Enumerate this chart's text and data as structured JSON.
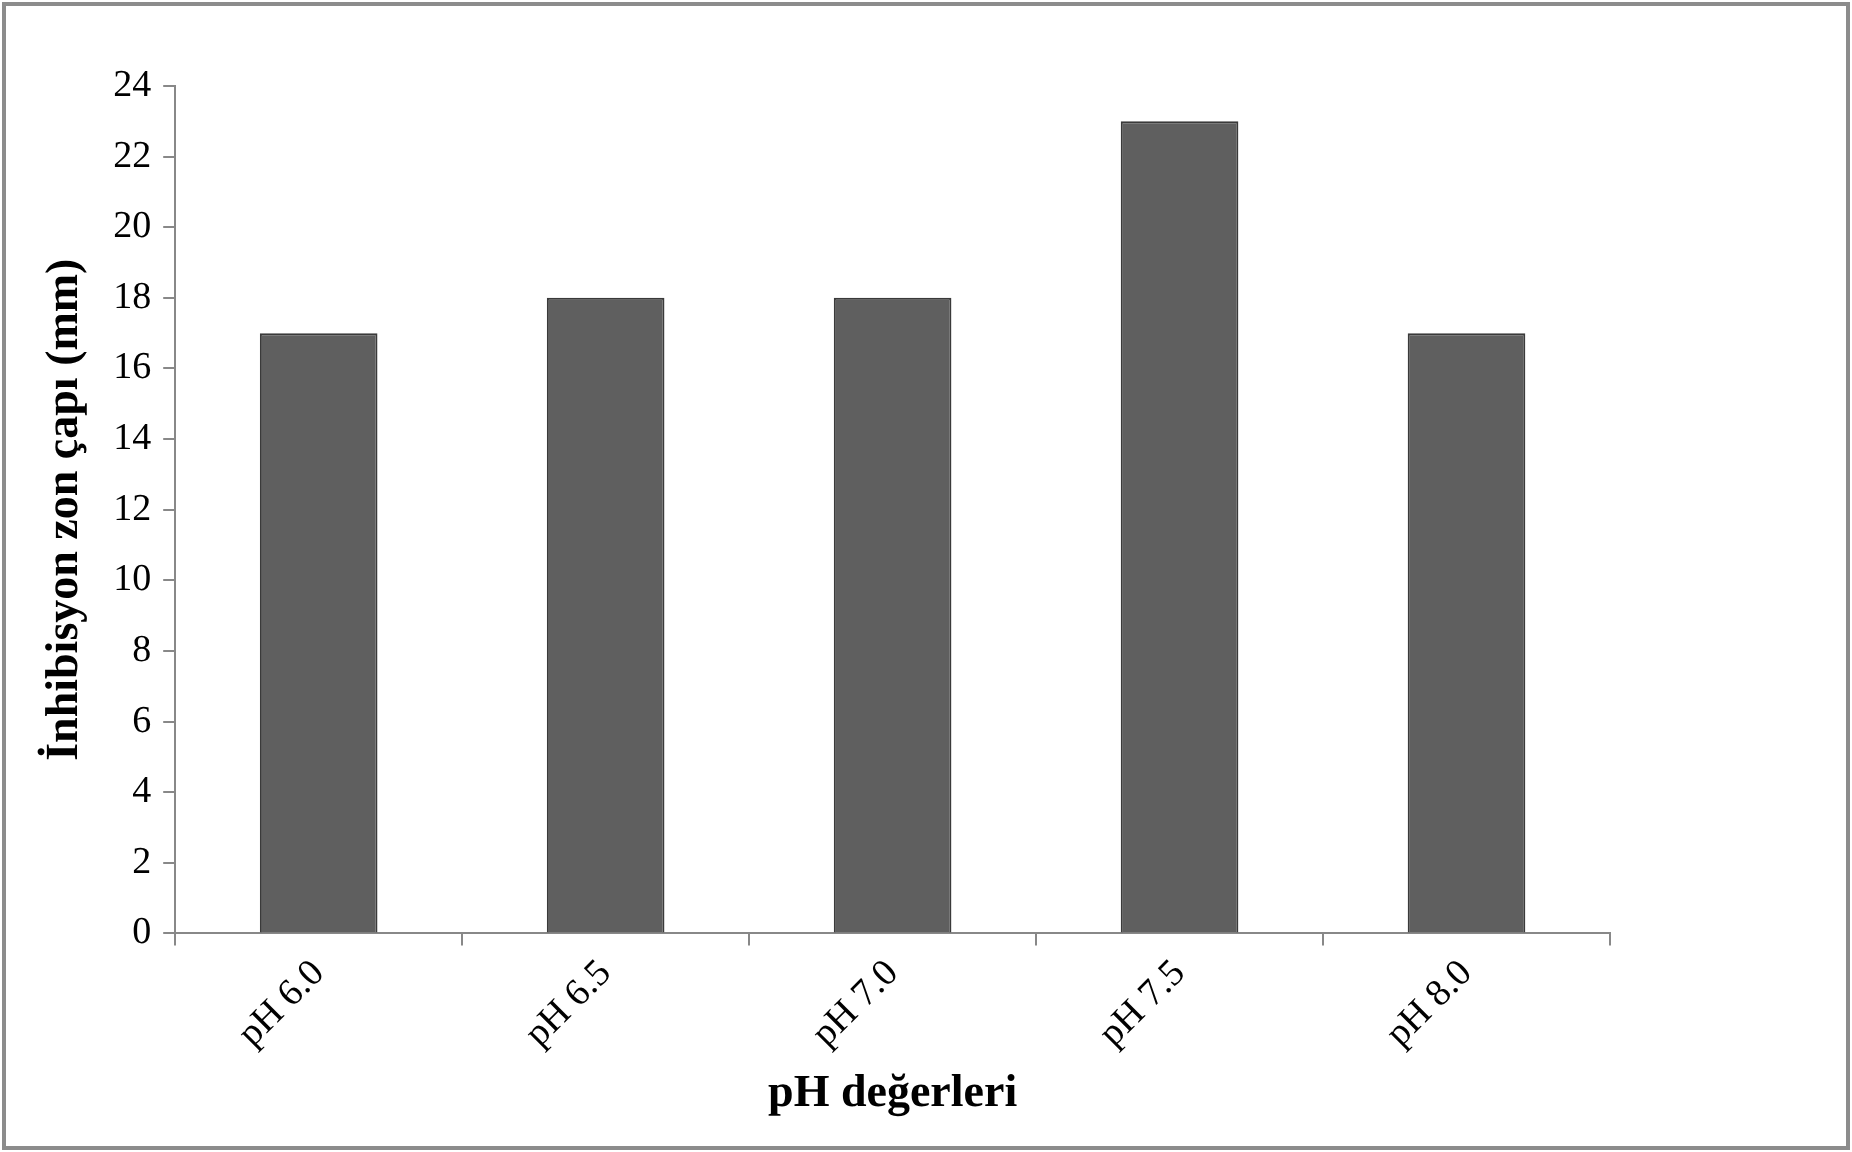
{
  "chart_data": {
    "type": "bar",
    "xlabel": "pH değerleri",
    "ylabel": "İnhibisyon zon çapı (mm)",
    "categories": [
      "pH 6.0",
      "pH 6.5",
      "pH 7.0",
      "pH 7.5",
      "pH 8.0"
    ],
    "values": [
      17,
      18,
      18,
      23,
      17
    ],
    "color": "#5f5f5f",
    "ylim": [
      0,
      24
    ],
    "yticks": [
      0,
      2,
      4,
      6,
      8,
      10,
      12,
      14,
      16,
      18,
      20,
      22,
      24
    ],
    "grid": false,
    "legend": false
  }
}
